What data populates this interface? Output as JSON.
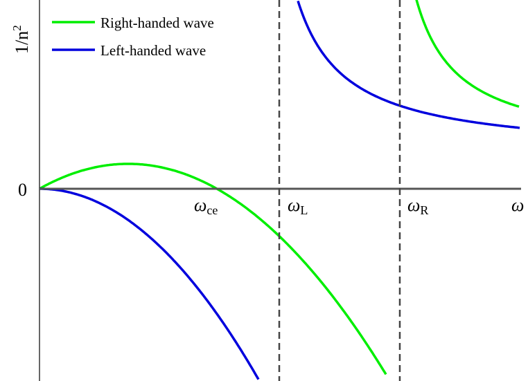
{
  "axes": {
    "y_label": {
      "text": "1/n",
      "sup": "2"
    },
    "origin": "0",
    "x_label": "ω"
  },
  "markers": [
    {
      "symbol": "ω",
      "sub": "ce"
    },
    {
      "symbol": "ω",
      "sub": "L"
    },
    {
      "symbol": "ω",
      "sub": "R"
    }
  ],
  "legend": [
    {
      "label": "Right-handed wave",
      "color": "#00ee00"
    },
    {
      "label": "Left-handed wave",
      "color": "#0000dd"
    }
  ]
}
